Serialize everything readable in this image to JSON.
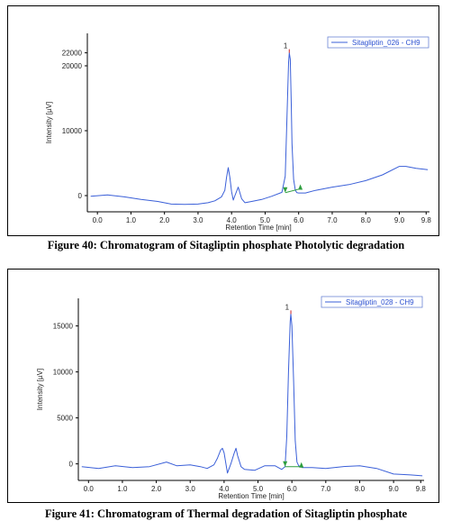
{
  "figures": [
    {
      "caption": "Figure 40: Chromatogram of Sitagliptin phosphate Photolytic degradation",
      "legend": "Sitagliptin_026 - CH9",
      "peak_label": "1"
    },
    {
      "caption": "Figure 41: Chromatogram of Thermal degradation of Sitagliptin phosphate",
      "legend": "Sitagliptin_028 - CH9",
      "peak_label": "1"
    }
  ],
  "colors": {
    "trace": "#3a5fd8",
    "baseline": "#2e9e3e",
    "axis": "#000000"
  },
  "chart_data": [
    {
      "type": "line",
      "xlabel": "Retention Time [min]",
      "ylabel": "Intensity [µV]",
      "xlim": [
        -0.3,
        9.9
      ],
      "ylim": [
        -2500,
        25000
      ],
      "xticks": [
        "0.0",
        "1.0",
        "2.0",
        "3.0",
        "4.0",
        "5.0",
        "6.0",
        "7.0",
        "8.0",
        "9.0",
        "9.8"
      ],
      "yticks": [
        "0",
        "10000",
        "20000",
        "22000"
      ],
      "ytick_values": [
        0,
        10000,
        20000,
        22000
      ],
      "series": [
        {
          "name": "Sitagliptin_026 - CH9",
          "x": [
            -0.2,
            0.3,
            0.8,
            1.3,
            1.8,
            2.2,
            2.6,
            3.0,
            3.3,
            3.5,
            3.7,
            3.8,
            3.85,
            3.9,
            3.95,
            4.0,
            4.05,
            4.1,
            4.2,
            4.25,
            4.3,
            4.4,
            4.6,
            4.9,
            5.2,
            5.5,
            5.6,
            5.65,
            5.7,
            5.72,
            5.75,
            5.78,
            5.8,
            5.85,
            5.9,
            5.95,
            6.0,
            6.2,
            6.5,
            7.0,
            7.5,
            8.0,
            8.5,
            9.0,
            9.2,
            9.5,
            9.85
          ],
          "y": [
            -100,
            100,
            -200,
            -600,
            -900,
            -1300,
            -1350,
            -1300,
            -1100,
            -800,
            -200,
            800,
            2800,
            4300,
            2800,
            600,
            -700,
            0,
            1300,
            400,
            -500,
            -1100,
            -900,
            -600,
            -100,
            500,
            3000,
            12000,
            20500,
            22000,
            21000,
            14000,
            8000,
            2500,
            800,
            450,
            400,
            400,
            800,
            1300,
            1700,
            2300,
            3200,
            4500,
            4500,
            4200,
            4000
          ]
        }
      ],
      "baseline_segment": {
        "x": [
          5.6,
          6.05
        ],
        "y": [
          450,
          1050
        ]
      },
      "peak": {
        "label": "1",
        "x": 5.72,
        "y": 22000
      },
      "legend_position": "top-right"
    },
    {
      "type": "line",
      "xlabel": "Retention Time [min]",
      "ylabel": "Intensity [µV]",
      "xlim": [
        -0.3,
        9.9
      ],
      "ylim": [
        -1800,
        18000
      ],
      "xticks": [
        "0.0",
        "1.0",
        "2.0",
        "3.0",
        "4.0",
        "5.0",
        "6.0",
        "7.0",
        "8.0",
        "9.0",
        "9.8"
      ],
      "yticks": [
        "0",
        "5000",
        "10000",
        "15000"
      ],
      "ytick_values": [
        0,
        5000,
        10000,
        15000
      ],
      "series": [
        {
          "name": "Sitagliptin_028 - CH9",
          "x": [
            -0.2,
            0.3,
            0.8,
            1.3,
            1.8,
            2.3,
            2.6,
            3.0,
            3.3,
            3.5,
            3.7,
            3.8,
            3.9,
            3.95,
            4.0,
            4.1,
            4.2,
            4.3,
            4.35,
            4.4,
            4.5,
            4.6,
            4.9,
            5.2,
            5.5,
            5.7,
            5.8,
            5.85,
            5.9,
            5.95,
            5.97,
            6.0,
            6.05,
            6.1,
            6.15,
            6.2,
            6.3,
            6.6,
            7.0,
            7.5,
            8.0,
            8.5,
            9.0,
            9.5,
            9.85
          ],
          "y": [
            -300,
            -500,
            -200,
            -400,
            -300,
            200,
            -200,
            -100,
            -300,
            -500,
            -100,
            600,
            1500,
            1700,
            1200,
            -1000,
            0,
            1200,
            1700,
            900,
            -300,
            -600,
            -700,
            -200,
            -200,
            -600,
            -300,
            3000,
            10000,
            15500,
            16300,
            15000,
            9000,
            2500,
            200,
            -200,
            -400,
            -400,
            -500,
            -300,
            -200,
            -500,
            -1100,
            -1200,
            -1300
          ]
        }
      ],
      "baseline_segment": {
        "x": [
          5.8,
          6.28
        ],
        "y": [
          -300,
          -300
        ]
      },
      "peak": {
        "label": "1",
        "x": 5.97,
        "y": 16300
      },
      "legend_position": "top-right"
    }
  ]
}
